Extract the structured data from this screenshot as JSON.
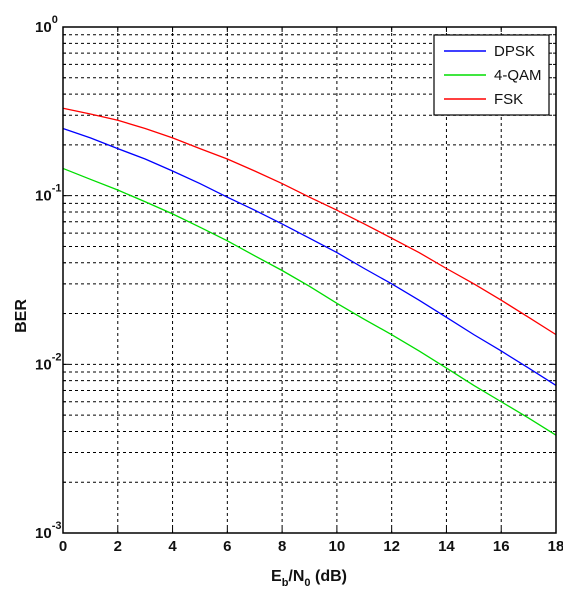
{
  "chart_data": {
    "type": "line",
    "xlabel": {
      "base": "E",
      "sub1": "b",
      "mid": "/N",
      "sub2": "0",
      "suffix": " (dB)"
    },
    "ylabel": "BER",
    "x_scale": "linear",
    "y_scale": "log",
    "xlim": [
      0,
      18
    ],
    "ylim": [
      0.001,
      1
    ],
    "x_ticks": [
      0,
      2,
      4,
      6,
      8,
      10,
      12,
      14,
      16,
      18
    ],
    "y_ticks": [
      {
        "value": 0.001,
        "base": "10",
        "exp": "-3"
      },
      {
        "value": 0.01,
        "base": "10",
        "exp": "-2"
      },
      {
        "value": 0.1,
        "base": "10",
        "exp": "-1"
      },
      {
        "value": 1,
        "base": "10",
        "exp": "0"
      }
    ],
    "grid": true,
    "legend_position": "top-right",
    "series": [
      {
        "name": "DPSK",
        "color": "#0000ff",
        "x": [
          0,
          1,
          2,
          3,
          4,
          5,
          6,
          7,
          8,
          9,
          10,
          11,
          12,
          13,
          14,
          15,
          16,
          17,
          18
        ],
        "values": [
          0.25,
          0.22,
          0.19,
          0.165,
          0.14,
          0.118,
          0.098,
          0.082,
          0.068,
          0.056,
          0.046,
          0.037,
          0.03,
          0.024,
          0.019,
          0.015,
          0.012,
          0.0095,
          0.0075
        ]
      },
      {
        "name": "4-QAM",
        "color": "#00dd00",
        "x": [
          0,
          1,
          2,
          3,
          4,
          5,
          6,
          7,
          8,
          9,
          10,
          11,
          12,
          13,
          14,
          15,
          16,
          17,
          18
        ],
        "values": [
          0.145,
          0.125,
          0.108,
          0.092,
          0.078,
          0.065,
          0.054,
          0.044,
          0.036,
          0.029,
          0.023,
          0.0185,
          0.015,
          0.012,
          0.0095,
          0.0075,
          0.006,
          0.0048,
          0.0038
        ]
      },
      {
        "name": "FSK",
        "color": "#ff0000",
        "x": [
          0,
          1,
          2,
          3,
          4,
          5,
          6,
          7,
          8,
          9,
          10,
          11,
          12,
          13,
          14,
          15,
          16,
          17,
          18
        ],
        "values": [
          0.33,
          0.305,
          0.28,
          0.25,
          0.22,
          0.19,
          0.165,
          0.14,
          0.118,
          0.098,
          0.082,
          0.068,
          0.056,
          0.046,
          0.037,
          0.03,
          0.024,
          0.019,
          0.015
        ]
      }
    ]
  }
}
